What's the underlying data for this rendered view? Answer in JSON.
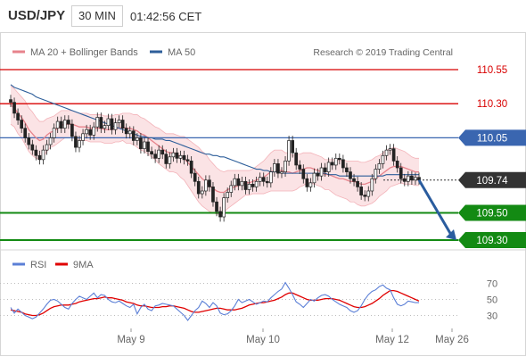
{
  "header": {
    "symbol": "USD/JPY",
    "timeframe": "30 MIN",
    "time": "01:42:56 CET"
  },
  "colors": {
    "ma20": "#e7838c",
    "ma50": "#2d5e9a",
    "bollinger_fill": "#fbe3e5",
    "red_line": "#d80000",
    "blue_line": "#3a66b0",
    "green_line": "#138a13",
    "grey_line": "#555555",
    "last_price": "#333333",
    "candle_up": "#ffffff",
    "candle_down": "#222222",
    "rsi": "#5b7fd6",
    "rsi_ma": "#e00000",
    "arrow": "#2a5c9e"
  },
  "chart_data": [
    {
      "type": "candlestick",
      "title": "USD/JPY 30 MIN",
      "legend": [
        {
          "name": "MA 20 + Bollinger Bands",
          "color": "#e7838c"
        },
        {
          "name": "MA 50",
          "color": "#2d5e9a"
        }
      ],
      "watermark": "Research © 2019 Trading Central",
      "x_tick_labels": [
        "May 9",
        "May 10",
        "May 12",
        "May 26"
      ],
      "ylim": [
        109.21,
        110.62
      ],
      "levels": [
        {
          "value": 110.55,
          "label": "110.55",
          "kind": "resistance",
          "color": "#d80000"
        },
        {
          "value": 110.3,
          "label": "110.30",
          "kind": "resistance",
          "color": "#d80000"
        },
        {
          "value": 110.05,
          "label": "110.05",
          "kind": "pivot",
          "color": "#3a66b0"
        },
        {
          "value": 109.74,
          "label": "109.74",
          "kind": "last",
          "color": "#333333"
        },
        {
          "value": 109.5,
          "label": "109.50",
          "kind": "support",
          "color": "#138a13"
        },
        {
          "value": 109.3,
          "label": "109.30",
          "kind": "support",
          "color": "#138a13"
        }
      ],
      "forecast_arrow": {
        "from": 109.74,
        "to": 109.3
      },
      "closes": [
        110.31,
        110.23,
        110.18,
        110.12,
        110.05,
        110.0,
        109.96,
        109.92,
        109.89,
        109.96,
        110.0,
        110.05,
        110.12,
        110.17,
        110.12,
        110.18,
        110.15,
        110.06,
        109.98,
        110.03,
        110.08,
        110.11,
        110.07,
        110.13,
        110.2,
        110.12,
        110.14,
        110.19,
        110.11,
        110.16,
        110.18,
        110.12,
        110.08,
        110.1,
        110.03,
        110.05,
        109.97,
        110.02,
        109.95,
        109.93,
        109.9,
        109.96,
        109.93,
        109.86,
        109.91,
        109.94,
        109.9,
        109.92,
        109.89,
        109.88,
        109.79,
        109.73,
        109.64,
        109.66,
        109.74,
        109.69,
        109.58,
        109.51,
        109.47,
        109.61,
        109.65,
        109.7,
        109.75,
        109.7,
        109.73,
        109.67,
        109.71,
        109.69,
        109.73,
        109.76,
        109.73,
        109.72,
        109.8,
        109.86,
        109.79,
        109.8,
        109.88,
        110.03,
        109.94,
        109.85,
        109.82,
        109.75,
        109.69,
        109.72,
        109.79,
        109.77,
        109.83,
        109.8,
        109.87,
        109.85,
        109.9,
        109.89,
        109.83,
        109.8,
        109.75,
        109.73,
        109.69,
        109.63,
        109.62,
        109.66,
        109.75,
        109.82,
        109.86,
        109.92,
        109.96,
        109.97,
        109.88,
        109.83,
        109.75,
        109.73,
        109.77,
        109.74,
        109.76,
        109.74
      ],
      "ma20": [
        110.29,
        110.27,
        110.23,
        110.2,
        110.16,
        110.11,
        110.08,
        110.05,
        110.03,
        110.04,
        110.07,
        110.09,
        110.1,
        110.12,
        110.14,
        110.15,
        110.15,
        110.15,
        110.14,
        110.13,
        110.13,
        110.13,
        110.12,
        110.12,
        110.12,
        110.12,
        110.11,
        110.11,
        110.11,
        110.12,
        110.12,
        110.13,
        110.12,
        110.12,
        110.11,
        110.1,
        110.08,
        110.07,
        110.05,
        110.03,
        110.01,
        109.99,
        109.97,
        109.95,
        109.94,
        109.94,
        109.93,
        109.91,
        109.9,
        109.87,
        109.84,
        109.81,
        109.78,
        109.75,
        109.73,
        109.7,
        109.68,
        109.66,
        109.65,
        109.65,
        109.67,
        109.68,
        109.69,
        109.7,
        109.71,
        109.72,
        109.72,
        109.73,
        109.74,
        109.75,
        109.76,
        109.78,
        109.8,
        109.81,
        109.81,
        109.81,
        109.8,
        109.8,
        109.79,
        109.8,
        109.81,
        109.82,
        109.83,
        109.83,
        109.82,
        109.81,
        109.8,
        109.78,
        109.78,
        109.77,
        109.76,
        109.75,
        109.75,
        109.74,
        109.73,
        109.73,
        109.72,
        109.71,
        109.71,
        109.72,
        109.73,
        109.75,
        109.77,
        109.79,
        109.81,
        109.83,
        109.84,
        109.84,
        109.84,
        109.83,
        109.82,
        109.81,
        109.8,
        109.8
      ],
      "bb_width": [
        0.14,
        0.14,
        0.15,
        0.15,
        0.16,
        0.16,
        0.16,
        0.15,
        0.14,
        0.13,
        0.12,
        0.11,
        0.11,
        0.11,
        0.11,
        0.1,
        0.1,
        0.1,
        0.1,
        0.1,
        0.1,
        0.1,
        0.1,
        0.1,
        0.1,
        0.1,
        0.1,
        0.1,
        0.1,
        0.1,
        0.1,
        0.1,
        0.11,
        0.11,
        0.11,
        0.12,
        0.12,
        0.12,
        0.12,
        0.12,
        0.12,
        0.13,
        0.13,
        0.13,
        0.14,
        0.14,
        0.14,
        0.15,
        0.16,
        0.17,
        0.18,
        0.19,
        0.2,
        0.2,
        0.2,
        0.19,
        0.18,
        0.17,
        0.16,
        0.15,
        0.14,
        0.13,
        0.12,
        0.11,
        0.1,
        0.09,
        0.09,
        0.09,
        0.1,
        0.11,
        0.12,
        0.13,
        0.14,
        0.15,
        0.15,
        0.15,
        0.14,
        0.14,
        0.13,
        0.13,
        0.12,
        0.12,
        0.11,
        0.11,
        0.11,
        0.11,
        0.11,
        0.11,
        0.11,
        0.12,
        0.13,
        0.13,
        0.14,
        0.14,
        0.15,
        0.15,
        0.16,
        0.16,
        0.16,
        0.16,
        0.16,
        0.16,
        0.15,
        0.15,
        0.15,
        0.14,
        0.14,
        0.13,
        0.12,
        0.12,
        0.11,
        0.1,
        0.1,
        0.1
      ],
      "ma50": [
        110.44,
        110.42,
        110.41,
        110.4,
        110.39,
        110.38,
        110.37,
        110.35,
        110.34,
        110.33,
        110.32,
        110.31,
        110.3,
        110.29,
        110.28,
        110.27,
        110.26,
        110.25,
        110.24,
        110.23,
        110.22,
        110.21,
        110.2,
        110.19,
        110.18,
        110.17,
        110.16,
        110.15,
        110.14,
        110.13,
        110.12,
        110.11,
        110.1,
        110.09,
        110.08,
        110.07,
        110.06,
        110.06,
        110.05,
        110.05,
        110.04,
        110.04,
        110.04,
        110.03,
        110.03,
        110.02,
        110.01,
        110.0,
        109.99,
        109.98,
        109.97,
        109.96,
        109.95,
        109.94,
        109.93,
        109.93,
        109.92,
        109.92,
        109.91,
        109.91,
        109.9,
        109.89,
        109.88,
        109.87,
        109.86,
        109.85,
        109.84,
        109.83,
        109.82,
        109.82,
        109.81,
        109.81,
        109.8,
        109.8,
        109.8,
        109.79,
        109.79,
        109.79,
        109.79,
        109.79,
        109.79,
        109.79,
        109.79,
        109.79,
        109.79,
        109.79,
        109.79,
        109.79,
        109.78,
        109.78,
        109.78,
        109.77,
        109.77,
        109.77,
        109.77,
        109.77,
        109.77,
        109.77,
        109.77,
        109.77,
        109.77,
        109.77,
        109.77,
        109.77,
        109.78,
        109.78,
        109.78,
        109.78,
        109.78,
        109.78,
        109.78,
        109.78,
        109.78,
        109.78
      ]
    },
    {
      "type": "line",
      "title": "RSI",
      "legend": [
        {
          "name": "RSI",
          "color": "#5b7fd6"
        },
        {
          "name": "9MA",
          "color": "#e00000"
        }
      ],
      "ylim": [
        22,
        80
      ],
      "y_ticks": [
        70,
        50,
        30
      ],
      "series": [
        {
          "name": "RSI",
          "values": [
            40,
            33,
            38,
            34,
            30,
            28,
            26,
            28,
            33,
            38,
            44,
            49,
            50,
            48,
            44,
            40,
            38,
            45,
            50,
            54,
            52,
            50,
            54,
            58,
            52,
            56,
            55,
            50,
            47,
            46,
            48,
            45,
            42,
            40,
            44,
            32,
            40,
            44,
            38,
            36,
            42,
            43,
            45,
            44,
            43,
            42,
            38,
            34,
            30,
            24,
            30,
            36,
            40,
            48,
            45,
            40,
            46,
            42,
            33,
            31,
            32,
            36,
            42,
            50,
            46,
            48,
            50,
            47,
            44,
            46,
            48,
            47,
            52,
            56,
            60,
            63,
            71,
            64,
            56,
            47,
            44,
            40,
            45,
            50,
            48,
            52,
            55,
            56,
            54,
            50,
            47,
            44,
            42,
            40,
            36,
            34,
            36,
            42,
            50,
            56,
            60,
            62,
            66,
            68,
            64,
            62,
            52,
            44,
            42,
            44,
            48,
            47,
            46,
            46
          ]
        },
        {
          "name": "9MA",
          "values": [
            37,
            36,
            35,
            34,
            32,
            31,
            30,
            30,
            31,
            33,
            36,
            39,
            41,
            42,
            43,
            43,
            43,
            44,
            45,
            47,
            48,
            49,
            50,
            51,
            51,
            52,
            53,
            52,
            52,
            51,
            50,
            49,
            47,
            46,
            45,
            43,
            42,
            42,
            41,
            40,
            40,
            40,
            41,
            41,
            42,
            42,
            41,
            40,
            39,
            37,
            35,
            34,
            34,
            35,
            36,
            37,
            38,
            39,
            39,
            38,
            37,
            37,
            37,
            38,
            39,
            41,
            43,
            44,
            45,
            46,
            46,
            47,
            48,
            49,
            51,
            53,
            56,
            58,
            58,
            56,
            54,
            52,
            50,
            49,
            49,
            49,
            50,
            51,
            51,
            51,
            50,
            49,
            47,
            45,
            43,
            41,
            40,
            40,
            41,
            43,
            45,
            48,
            51,
            55,
            58,
            61,
            61,
            60,
            58,
            56,
            54,
            52,
            50,
            48
          ]
        }
      ]
    }
  ]
}
